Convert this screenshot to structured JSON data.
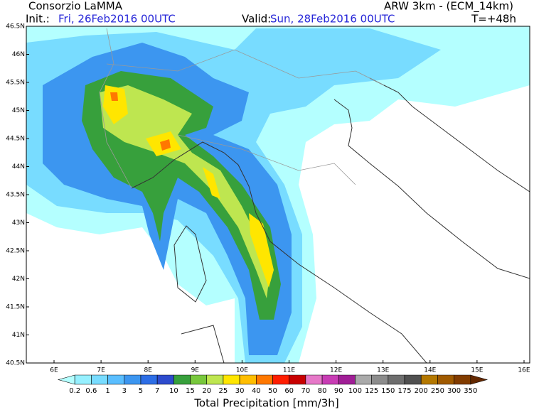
{
  "header": {
    "title": "Consorzio LaMMA",
    "init_label": "Init.:",
    "init": "Fri, 26Feb2016 00UTC",
    "model": "ARW 3km - (ECM_14km)",
    "valid_label": "Valid:",
    "valid": "Sun, 28Feb2016 00UTC",
    "lead": "T=+48h"
  },
  "map": {
    "lat_labels": [
      "46.5N",
      "46N",
      "45.5N",
      "45N",
      "44.5N",
      "44N",
      "43.5N",
      "43N",
      "42.5N",
      "42N",
      "41.5N",
      "41N",
      "40.5N"
    ],
    "lon_labels": [
      "6E",
      "7E",
      "8E",
      "9E",
      "10E",
      "11E",
      "12E",
      "13E",
      "14E",
      "15E",
      "16E"
    ]
  },
  "legend": {
    "title": "Total Precipitation [mm/3h]",
    "labels": [
      "0.2",
      "0.6",
      "1",
      "3",
      "5",
      "7",
      "10",
      "15",
      "20",
      "25",
      "30",
      "40",
      "50",
      "60",
      "70",
      "80",
      "90",
      "100",
      "125",
      "150",
      "175",
      "200",
      "250",
      "300",
      "350"
    ],
    "colors": [
      "#b4ffff",
      "#96f0ff",
      "#78dcff",
      "#5abeff",
      "#3c96f0",
      "#2d6ee6",
      "#2d4bcd",
      "#37a03c",
      "#78c83c",
      "#bee650",
      "#ffe600",
      "#ffbe00",
      "#ff7800",
      "#ff1e00",
      "#c80000",
      "#e678c8",
      "#c83cb4",
      "#a01e96",
      "#aaaaaa",
      "#8c8c8c",
      "#6e6e6e",
      "#505050",
      "#b47800",
      "#a05a00",
      "#823c00",
      "#642800"
    ]
  }
}
